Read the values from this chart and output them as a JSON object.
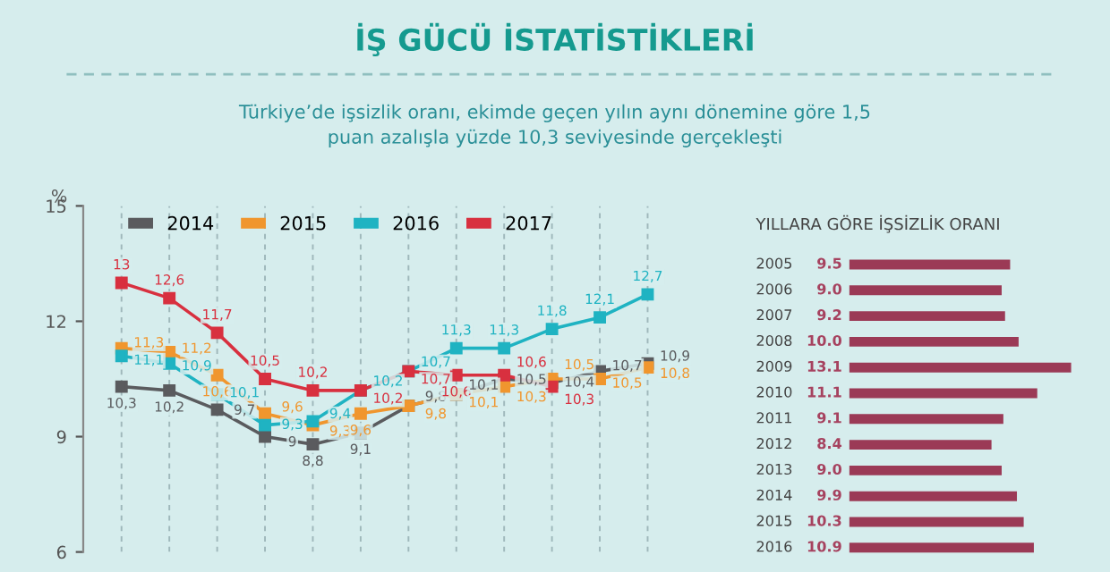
{
  "chart_data": [
    {
      "type": "line",
      "title": "İŞ GÜCÜ İSTATİSTİKLERİ",
      "subtitle": "Türkiye’de işsizlik oranı, ekimde geçen yılın aynı dönemine göre 1,5\npuan azalışla yüzde 10,3 seviyesinde gerçekleşti",
      "ylabel": "%",
      "categories": [
        null,
        null,
        null,
        null,
        null,
        null,
        null,
        null,
        null,
        null,
        null,
        null
      ],
      "series": [
        {
          "name": "2014",
          "color": "#5a5b5e",
          "values": [
            10.3,
            10.2,
            9.7,
            9,
            8.8,
            9.1,
            9.8,
            10.1,
            10.5,
            10.4,
            10.7,
            10.9
          ],
          "value_labels": [
            "10,3",
            "10,2",
            "9,7",
            "9",
            "8,8",
            "9,1",
            "9,8",
            "10,1",
            "10,5",
            "10,4",
            "10,7",
            "10,9"
          ]
        },
        {
          "name": "2015",
          "color": "#f0962e",
          "values": [
            11.3,
            11.2,
            10.6,
            9.6,
            9.3,
            9.6,
            9.8,
            10.1,
            10.3,
            10.5,
            10.5,
            10.8
          ],
          "value_labels": [
            "11,3",
            "11,2",
            "10,6",
            "9,6",
            "9,3",
            "9,6",
            "9,8",
            "10,1",
            "10,3",
            "10,5",
            "10,5",
            "10,8"
          ]
        },
        {
          "name": "2016",
          "color": "#1fb3c2",
          "values": [
            11.1,
            10.9,
            10.1,
            9.3,
            9.4,
            10.2,
            10.7,
            11.3,
            11.3,
            11.8,
            12.1,
            12.7
          ],
          "value_labels": [
            "11,1",
            "10,9",
            "10,1",
            "9,3",
            "9,4",
            "10,2",
            "10,7",
            "11,3",
            "11,3",
            "11,8",
            "12,1",
            "12,7"
          ]
        },
        {
          "name": "2017",
          "color": "#d8303f",
          "values": [
            13,
            12.6,
            11.7,
            10.5,
            10.2,
            10.2,
            10.7,
            10.6,
            10.6,
            10.3,
            null,
            null
          ],
          "value_labels": [
            "13",
            "12,6",
            "11,7",
            "10,5",
            "10,2",
            "10,2",
            "10,7",
            "10,6",
            "10,6",
            "10,3",
            null,
            null
          ]
        }
      ],
      "ylim": [
        6,
        15
      ],
      "yticks": [
        6,
        9,
        12,
        15
      ],
      "grid": "x",
      "legend": "top left",
      "marker": "square",
      "line_style": "solid"
    },
    {
      "type": "bar",
      "orientation": "horizontal",
      "title": "YILLARA GÖRE İŞSİZLİK ORANI",
      "categories": [
        "2005",
        "2006",
        "2007",
        "2008",
        "2009",
        "2010",
        "2011",
        "2012",
        "2013",
        "2014",
        "2015",
        "2016"
      ],
      "values": [
        9.5,
        9.0,
        9.2,
        10.0,
        13.1,
        11.1,
        9.1,
        8.4,
        9.0,
        9.9,
        10.3,
        10.9
      ],
      "value_labels": [
        "9.5",
        "9.0",
        "9.2",
        "10.0",
        "13.1",
        "11.1",
        "9.1",
        "8.4",
        "9.0",
        "9.9",
        "10.3",
        "10.9"
      ],
      "color": "#9b3a56"
    }
  ]
}
